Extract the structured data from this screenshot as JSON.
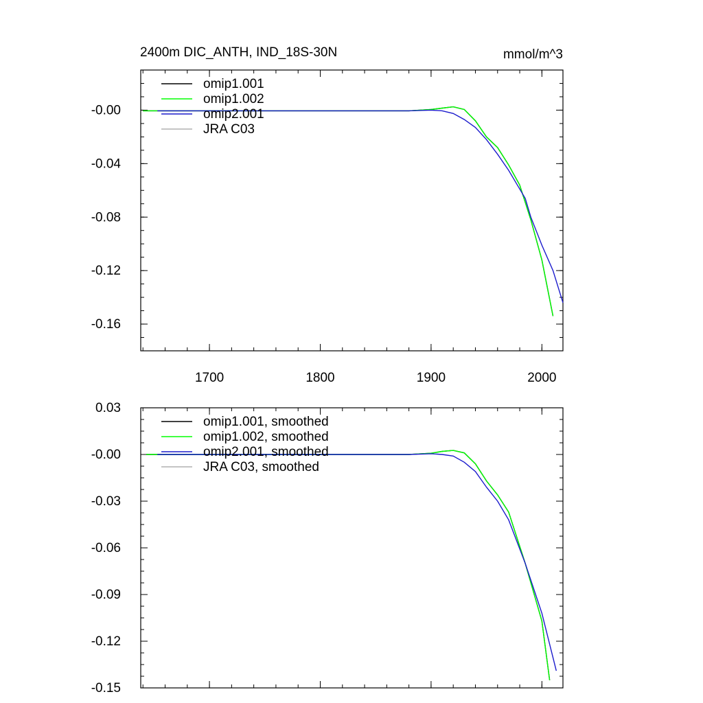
{
  "chart_data": [
    {
      "type": "line",
      "title": "2400m DIC_ANTH, IND_18S-30N",
      "units": "mmol/m^3",
      "xlim": [
        1638,
        2019
      ],
      "ylim": [
        -0.18,
        0.03
      ],
      "xticks": [
        1700,
        1800,
        1900,
        2000
      ],
      "yticks": [
        {
          "value": 0,
          "label": "-0.00"
        },
        -0.04,
        -0.08,
        -0.12,
        -0.16
      ],
      "series": [
        {
          "name": "omip1.001",
          "color": "#000000",
          "x": [
            1640,
            1700,
            1800,
            1880,
            1900,
            1910,
            1920,
            1930,
            1940,
            1950,
            1960,
            1970,
            1980,
            1990,
            2000,
            2010
          ],
          "values": [
            -0.0005,
            -0.0005,
            -0.0005,
            -0.0005,
            0.0005,
            0.0015,
            0.0025,
            0.0005,
            -0.008,
            -0.02,
            -0.028,
            -0.041,
            -0.056,
            -0.082,
            -0.112,
            -0.154
          ]
        },
        {
          "name": "omip1.002",
          "color": "#00ff00",
          "x": [
            1640,
            1700,
            1800,
            1880,
            1900,
            1910,
            1920,
            1930,
            1940,
            1950,
            1960,
            1970,
            1980,
            1990,
            2000,
            2010
          ],
          "values": [
            -0.0005,
            -0.0005,
            -0.0005,
            -0.0005,
            0.0005,
            0.0015,
            0.0025,
            0.0005,
            -0.008,
            -0.02,
            -0.028,
            -0.041,
            -0.056,
            -0.082,
            -0.112,
            -0.154
          ]
        },
        {
          "name": "omip2.001",
          "color": "#1a1acc",
          "x": [
            1653,
            1700,
            1800,
            1880,
            1900,
            1910,
            1920,
            1930,
            1940,
            1950,
            1960,
            1970,
            1980,
            1985,
            1990,
            2000,
            2010,
            2019
          ],
          "values": [
            -0.0005,
            -0.0005,
            -0.0005,
            -0.0005,
            0.0,
            -0.0005,
            -0.0025,
            -0.007,
            -0.013,
            -0.022,
            -0.033,
            -0.045,
            -0.059,
            -0.066,
            -0.08,
            -0.101,
            -0.12,
            -0.144
          ]
        },
        {
          "name": "JRA C03",
          "color": "#b0b0b0",
          "x": [],
          "values": []
        }
      ]
    },
    {
      "type": "line",
      "xlim": [
        1638,
        2019
      ],
      "ylim": [
        -0.15,
        0.03
      ],
      "xticks": [
        1700,
        1800,
        1900,
        2000
      ],
      "yticks": [
        0.03,
        {
          "value": 0,
          "label": "-0.00"
        },
        -0.03,
        -0.06,
        -0.09,
        -0.12,
        -0.15
      ],
      "series": [
        {
          "name": "omip1.001, smoothed",
          "color": "#000000",
          "x": [
            1643,
            1700,
            1800,
            1880,
            1900,
            1910,
            1920,
            1930,
            1940,
            1950,
            1960,
            1970,
            1985,
            2000,
            2007
          ],
          "values": [
            0.0,
            0.0,
            0.0,
            0.0,
            0.0008,
            0.002,
            0.0026,
            0.001,
            -0.006,
            -0.017,
            -0.026,
            -0.037,
            -0.07,
            -0.107,
            -0.145
          ]
        },
        {
          "name": "omip1.002, smoothed",
          "color": "#00ff00",
          "x": [
            1643,
            1700,
            1800,
            1880,
            1900,
            1910,
            1920,
            1930,
            1940,
            1950,
            1960,
            1970,
            1985,
            2000,
            2007
          ],
          "values": [
            0.0,
            0.0,
            0.0,
            0.0,
            0.0008,
            0.002,
            0.0026,
            0.001,
            -0.006,
            -0.017,
            -0.026,
            -0.037,
            -0.07,
            -0.107,
            -0.145
          ]
        },
        {
          "name": "omip2.001, smoothed",
          "color": "#1a1acc",
          "x": [
            1653,
            1700,
            1800,
            1880,
            1900,
            1910,
            1920,
            1930,
            1940,
            1950,
            1960,
            1970,
            1985,
            2000,
            2013
          ],
          "values": [
            0.0,
            0.0,
            0.0,
            0.0,
            0.0005,
            0.0,
            -0.001,
            -0.005,
            -0.011,
            -0.021,
            -0.03,
            -0.042,
            -0.07,
            -0.102,
            -0.139
          ]
        },
        {
          "name": "JRA C03, smoothed",
          "color": "#b0b0b0",
          "x": [],
          "values": []
        }
      ]
    }
  ]
}
